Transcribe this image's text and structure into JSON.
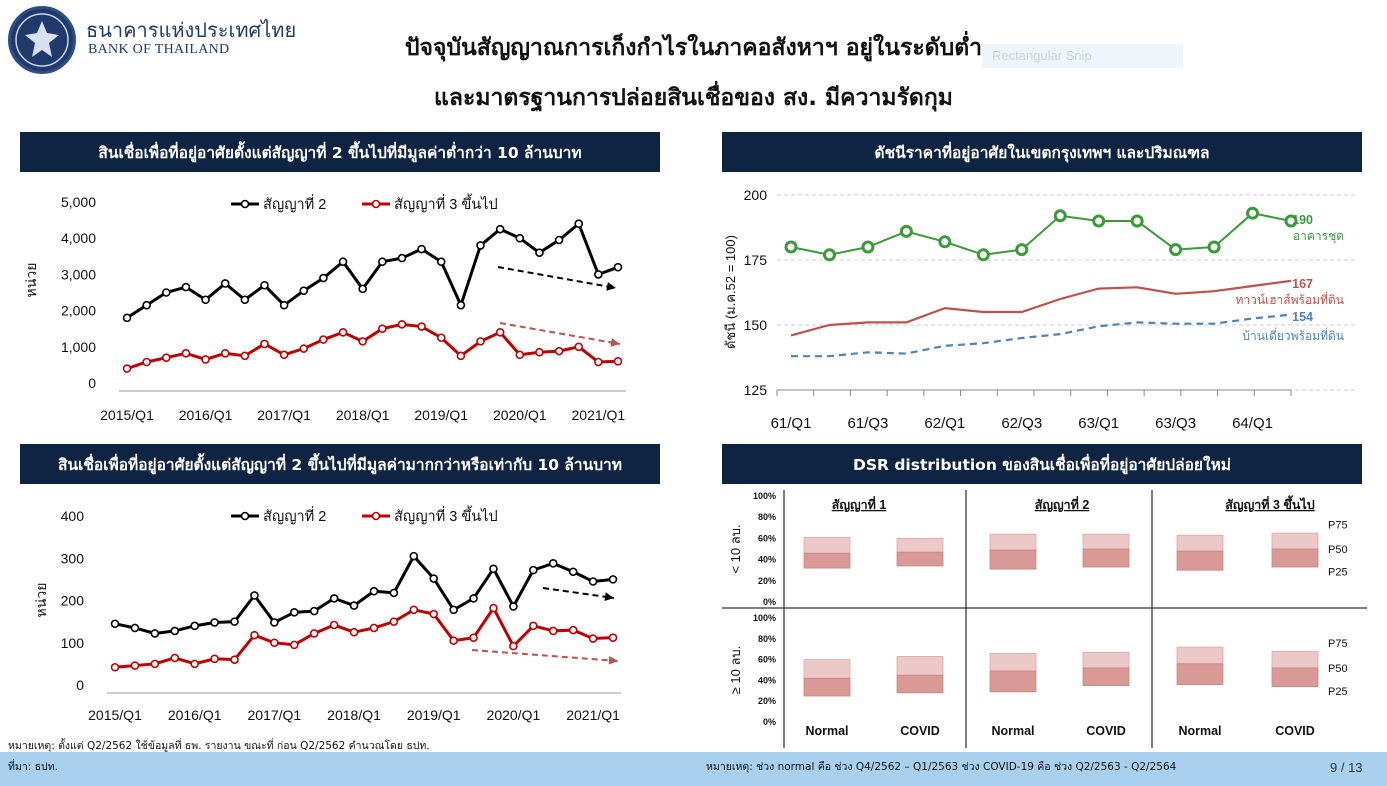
{
  "header": {
    "org_name_th": "ธนาคารแห่งประเทศไทย",
    "org_name_en": "BANK OF THAILAND",
    "title_line1": "ปัจจุบันสัญญาณการเก็งกำไรในภาคอสังหาฯ อยู่ในระดับต่ำ",
    "title_line2": "และมาตรฐานการปล่อยสินเชื่อของ สง. มีความรัดกุม",
    "snip_label": "Rectangular Snip"
  },
  "panels": {
    "top_left_title": "สินเชื่อเพื่อที่อยู่อาศัยตั้งแต่สัญญาที่ 2 ขึ้นไปที่มีมูลค่าต่ำกว่า 10 ล้านบาท",
    "bottom_left_title": "สินเชื่อเพื่อที่อยู่อาศัยตั้งแต่สัญญาที่ 2 ขึ้นไปที่มีมูลค่ามากกว่าหรือเท่ากับ 10 ล้านบาท",
    "top_right_title": "ดัชนีราคาที่อยู่อาศัยในเขตกรุงเทพฯ และปริมณฑล",
    "bottom_right_title": "DSR distribution ของสินเชื่อเพื่อที่อยู่อาศัยปล่อยใหม่"
  },
  "chart_data": [
    {
      "type": "line",
      "ylabel": "หน่วย",
      "ylim": [
        0,
        5000
      ],
      "yticks": [
        "5,000",
        "4,000",
        "3,000",
        "2,000",
        "1,000",
        "0"
      ],
      "xticks": [
        "2015/Q1",
        "2016/Q1",
        "2017/Q1",
        "2018/Q1",
        "2019/Q1",
        "2020/Q1",
        "2021/Q1"
      ],
      "series": [
        {
          "name": "สัญญาที่ 2",
          "color": "#000000",
          "values": [
            1800,
            2150,
            2500,
            2650,
            2300,
            2750,
            2300,
            2700,
            2150,
            2550,
            2900,
            3350,
            2600,
            3350,
            3450,
            3700,
            3350,
            2150,
            3800,
            4250,
            4000,
            3600,
            3950,
            4400,
            3000,
            3200
          ]
        },
        {
          "name": "สัญญาที่ 3 ขึ้นไป",
          "color": "#c00000",
          "values": [
            400,
            580,
            700,
            820,
            650,
            820,
            750,
            1080,
            780,
            950,
            1200,
            1400,
            1150,
            1500,
            1620,
            1560,
            1250,
            750,
            1150,
            1400,
            780,
            850,
            880,
            1000,
            580,
            600
          ]
        }
      ]
    },
    {
      "type": "line",
      "ylabel": "หน่วย",
      "ylim": [
        0,
        400
      ],
      "yticks": [
        "400",
        "300",
        "200",
        "100",
        "0"
      ],
      "xticks": [
        "2015/Q1",
        "2016/Q1",
        "2017/Q1",
        "2018/Q1",
        "2019/Q1",
        "2020/Q1",
        "2021/Q1"
      ],
      "series": [
        {
          "name": "สัญญาที่ 2",
          "color": "#000000",
          "values": [
            145,
            135,
            122,
            128,
            140,
            148,
            150,
            212,
            148,
            172,
            175,
            205,
            188,
            222,
            218,
            305,
            252,
            178,
            205,
            275,
            186,
            272,
            288,
            268,
            245,
            250
          ]
        },
        {
          "name": "สัญญาที่ 3 ขึ้นไป",
          "color": "#c00000",
          "values": [
            42,
            46,
            50,
            64,
            50,
            62,
            60,
            118,
            100,
            95,
            122,
            142,
            125,
            135,
            150,
            178,
            168,
            105,
            112,
            182,
            92,
            140,
            128,
            130,
            110,
            112
          ]
        }
      ]
    },
    {
      "type": "line",
      "ylabel": "ดัชนี (ม.ค.52 = 100)",
      "ylim": [
        125,
        200
      ],
      "yticks": [
        "200",
        "175",
        "150",
        "125"
      ],
      "xticks": [
        "61/Q1",
        "61/Q3",
        "62/Q1",
        "62/Q3",
        "63/Q1",
        "63/Q3",
        "64/Q1"
      ],
      "series": [
        {
          "name": "อาคารชุด",
          "end_label": "190",
          "color": "#3a9a3a",
          "values": [
            180,
            177,
            180,
            186,
            182,
            177,
            179,
            192,
            190,
            190,
            179,
            180,
            193,
            190
          ]
        },
        {
          "name": "ทาวน์เฮาส์พร้อมที่ดิน",
          "end_label": "167",
          "color": "#c0504d",
          "values": [
            146,
            150,
            151,
            151,
            156.5,
            155,
            155,
            160,
            164,
            164.5,
            162,
            163,
            165,
            167
          ]
        },
        {
          "name": "บ้านเดี่ยวพร้อมที่ดิน",
          "end_label": "154",
          "color": "#4f81bd",
          "values": [
            138,
            138,
            139.5,
            139,
            142,
            143,
            145,
            146.5,
            149.5,
            151,
            150.5,
            150.5,
            152.5,
            154
          ]
        }
      ]
    },
    {
      "type": "box",
      "yticks": [
        "100%",
        "80%",
        "60%",
        "40%",
        "20%",
        "0%"
      ],
      "columns": [
        "สัญญาที่ 1",
        "สัญญาที่ 2",
        "สัญญาที่ 3 ขึ้นไป"
      ],
      "rows": [
        "< 10 ลบ.",
        "≥ 10 ลบ."
      ],
      "categories": [
        "Normal",
        "COVID"
      ],
      "quantile_labels": [
        "P75",
        "P50",
        "P25"
      ],
      "boxes": [
        [
          [
            {
              "p25": 32,
              "p50": 46,
              "p75": 61
            },
            {
              "p25": 34,
              "p50": 47,
              "p75": 60
            }
          ],
          [
            {
              "p25": 31,
              "p50": 49,
              "p75": 64
            },
            {
              "p25": 33,
              "p50": 50,
              "p75": 64
            }
          ],
          [
            {
              "p25": 30,
              "p50": 48,
              "p75": 63
            },
            {
              "p25": 33,
              "p50": 50,
              "p75": 65
            }
          ]
        ],
        [
          [
            {
              "p25": 25,
              "p50": 42,
              "p75": 60
            },
            {
              "p25": 28,
              "p50": 45,
              "p75": 63
            }
          ],
          [
            {
              "p25": 29,
              "p50": 49,
              "p75": 66
            },
            {
              "p25": 35,
              "p50": 52,
              "p75": 67
            }
          ],
          [
            {
              "p25": 36,
              "p50": 56,
              "p75": 72
            },
            {
              "p25": 34,
              "p50": 52,
              "p75": 68
            }
          ]
        ]
      ]
    }
  ],
  "notes": {
    "left_note": "หมายเหตุ: ตั้งแต่ Q2/2562 ใช้ข้อมูลที่ ธพ. รายงาน ขณะที่ ก่อน Q2/2562 คำนวณโดย ธปท.",
    "source": "ที่มา: ธปท.",
    "right_note": "หมายเหตุ: ช่วง normal คือ ช่วง Q4/2562 – Q1/2563   ช่วง COVID-19 คือ ช่วง Q2/2563 - Q2/2564",
    "page": "9 / 13"
  }
}
